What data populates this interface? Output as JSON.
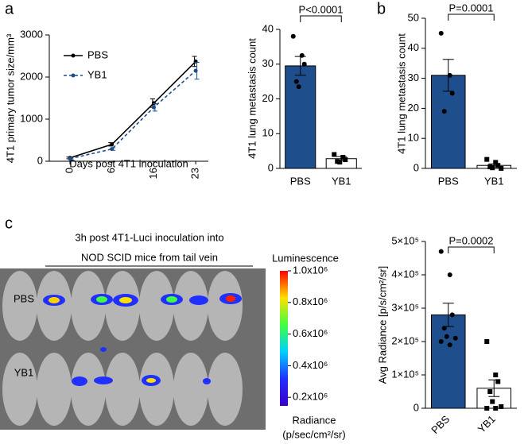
{
  "figure": {
    "panel_labels": [
      "a",
      "b",
      "c"
    ],
    "image": {
      "title_line1": "3h post 4T1-Luci inoculation into",
      "title_line2": "NOD SCID mice from tail vein",
      "row_labels": [
        "PBS",
        "YB1"
      ],
      "colorbar": {
        "title": "Luminescence",
        "lim": [
          0,
          1000000
        ],
        "ticks": [
          {
            "value": 1000000,
            "label": "1.0x10⁶"
          },
          {
            "value": 800000,
            "label": "0.8x10⁶"
          },
          {
            "value": 600000,
            "label": "0.6x10⁶"
          },
          {
            "value": 400000,
            "label": "0.4x10⁶"
          },
          {
            "value": 200000,
            "label": "0.2x10⁶"
          }
        ],
        "unit_line1": "Radiance",
        "unit_line2": "(p/sec/cm²/sr)"
      }
    }
  },
  "chart_data": [
    {
      "type": "line",
      "ylabel": "4T1 primary tumor size/mm³",
      "xlabel": "Days post 4T1 inoculation",
      "categories": [
        "0",
        "6",
        "16",
        "23"
      ],
      "ylim": [
        0,
        3000
      ],
      "yticks": [
        0,
        1000,
        2000,
        3000
      ],
      "legend": "upper left",
      "series": [
        {
          "name": "PBS",
          "color": "#000000",
          "dashed": false,
          "values": [
            80,
            400,
            1380,
            2370
          ],
          "errors": [
            20,
            40,
            100,
            120
          ]
        },
        {
          "name": "YB1",
          "color": "#1f4e8c",
          "dashed": true,
          "values": [
            60,
            290,
            1280,
            2150
          ],
          "errors": [
            20,
            30,
            90,
            200
          ]
        }
      ]
    },
    {
      "type": "bar",
      "ylabel": "4T1 lung metastasis count",
      "categories": [
        "PBS",
        "YB1"
      ],
      "colors": [
        "#1f4e8c",
        "#ffffff"
      ],
      "values": [
        29.5,
        2.8
      ],
      "errors": [
        2.7,
        0.6
      ],
      "points": [
        [
          38,
          32.5,
          30,
          25,
          23.5
        ],
        [
          4,
          3.2,
          2.5,
          2,
          1.8
        ]
      ],
      "ylim": [
        0,
        40
      ],
      "yticks": [
        0,
        10,
        20,
        30,
        40
      ],
      "annotation": "P<0.0001"
    },
    {
      "type": "bar",
      "ylabel": "4T1 lung metastasis count",
      "categories": [
        "PBS",
        "YB1"
      ],
      "colors": [
        "#1f4e8c",
        "#ffffff"
      ],
      "values": [
        31,
        1
      ],
      "errors": [
        5.3,
        0.5
      ],
      "points": [
        [
          45,
          31,
          25,
          19
        ],
        [
          3,
          2,
          1,
          0.5,
          0.2,
          0
        ]
      ],
      "ylim": [
        0,
        50
      ],
      "yticks": [
        0,
        10,
        20,
        30,
        40,
        50
      ],
      "annotation": "P=0.0001"
    },
    {
      "type": "bar",
      "ylabel": "Avg Radiance [p/s/cm²/sr]",
      "categories": [
        "PBS",
        "YB1"
      ],
      "colors": [
        "#1f4e8c",
        "#ffffff"
      ],
      "values": [
        280000,
        60000
      ],
      "errors": [
        35000,
        25000
      ],
      "points": [
        [
          470000,
          400000,
          280000,
          240000,
          215000,
          210000,
          200000,
          190000
        ],
        [
          200000,
          100000,
          80000,
          50000,
          20000,
          5000,
          0,
          0
        ]
      ],
      "ylim": [
        0,
        500000
      ],
      "yticks": [
        0,
        {
          "value": 100000,
          "label": "1×10⁵"
        },
        {
          "value": 200000,
          "label": "2×10⁵"
        },
        {
          "value": 300000,
          "label": "3×10⁵"
        },
        {
          "value": 400000,
          "label": "4×10⁵"
        },
        {
          "value": 500000,
          "label": "5×10⁵"
        }
      ],
      "annotation": "P=0.0002"
    }
  ]
}
